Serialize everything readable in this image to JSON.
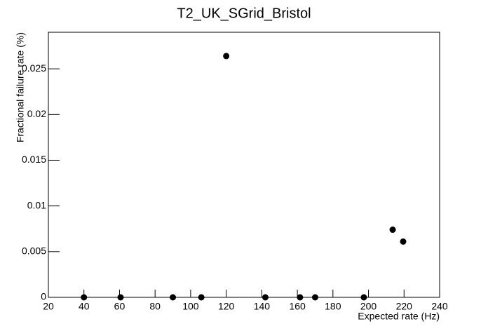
{
  "chart_data": {
    "type": "scatter",
    "title": "T2_UK_SGrid_Bristol",
    "x_label": "Expected rate (Hz)",
    "y_label": "Fractional failure rate (%)",
    "x": [
      40,
      60.6,
      90,
      106,
      120,
      142,
      161.5,
      170,
      197.4,
      213.6,
      219.5
    ],
    "values": [
      0,
      0,
      0,
      0,
      0.0264,
      0,
      0,
      0,
      0,
      0.0074,
      0.0061
    ],
    "color": "#000000",
    "xlim": [
      20,
      240
    ],
    "xticks": [
      20,
      40,
      60,
      80,
      100,
      120,
      140,
      160,
      180,
      200,
      220,
      240
    ],
    "ylim": [
      0,
      0.029
    ],
    "yticks": [
      0,
      0.005,
      0.01,
      0.015,
      0.02,
      0.025
    ]
  }
}
